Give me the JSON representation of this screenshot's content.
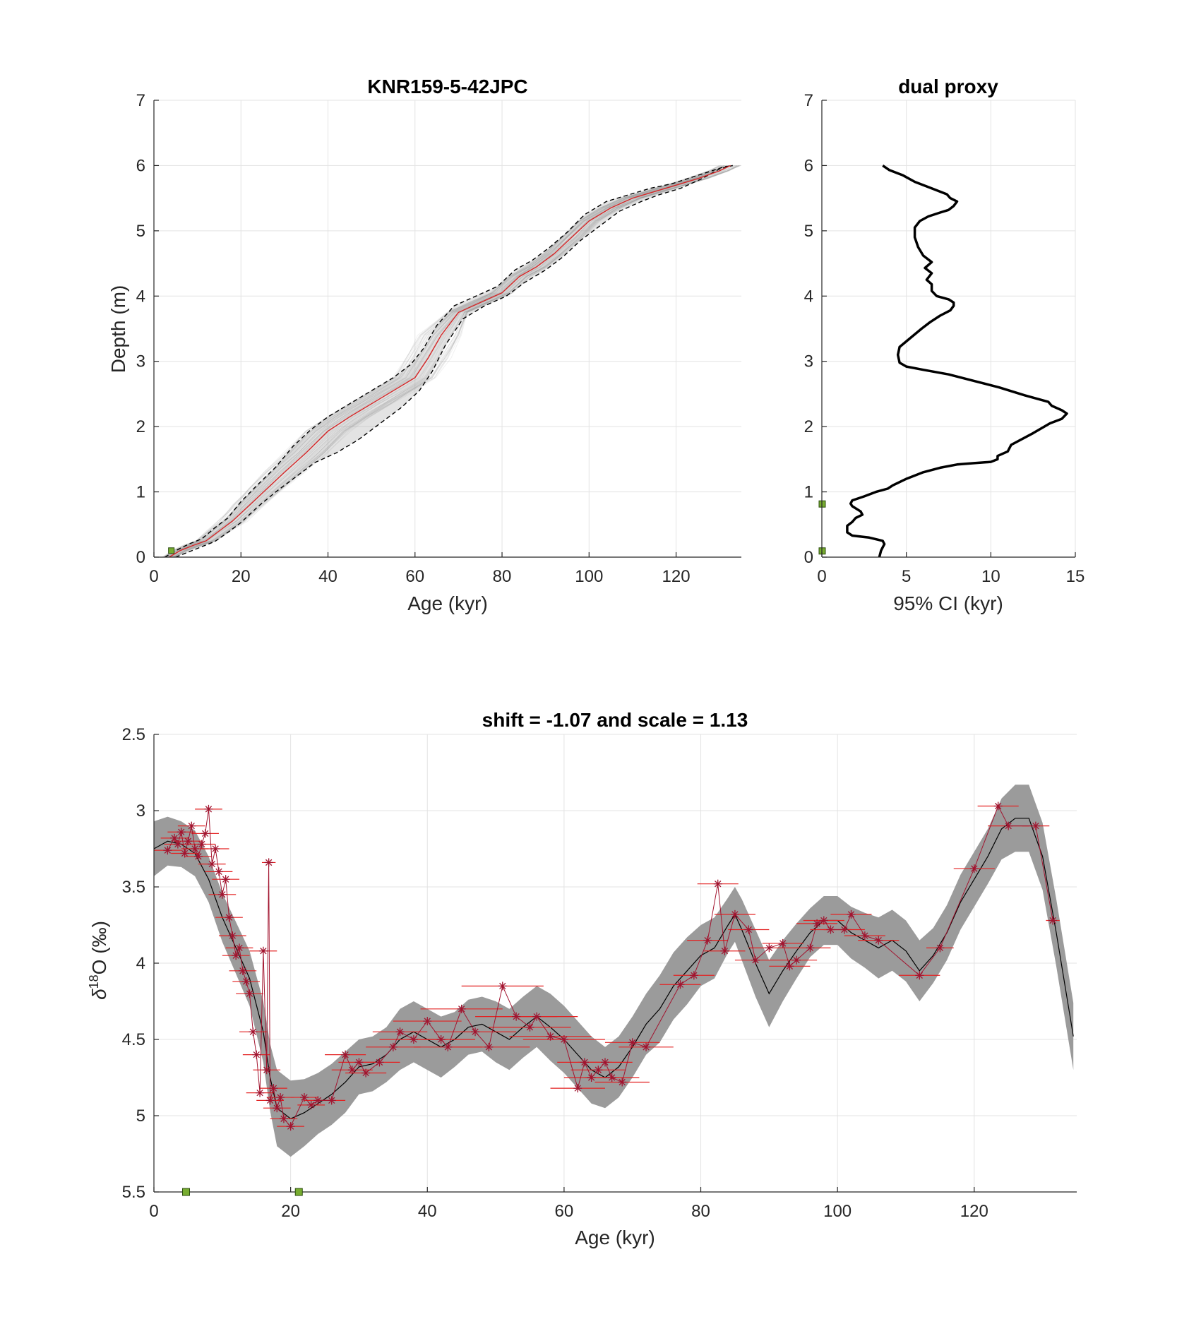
{
  "chart_data": [
    {
      "id": "age_depth",
      "type": "line",
      "title": "KNR159-5-42JPC",
      "xlabel": "Age (kyr)",
      "ylabel": "Depth (m)",
      "xlim": [
        0,
        135
      ],
      "ylim": [
        0,
        7
      ],
      "xticks": [
        "0",
        "20",
        "40",
        "60",
        "80",
        "100",
        "120"
      ],
      "yticks": [
        "0",
        "1",
        "2",
        "3",
        "4",
        "5",
        "6",
        "7"
      ],
      "grid": true,
      "colors": {
        "median": "#d62728",
        "bounds": "#000000",
        "ensemble": "#9a9a9a",
        "tiepoint": "#77ac30"
      },
      "series": [
        {
          "role": "median",
          "x": [
            3.5,
            6,
            9,
            12,
            15,
            18,
            22,
            26,
            30,
            35,
            40,
            45,
            50,
            55,
            60,
            63,
            66,
            70,
            75,
            80,
            84,
            88,
            92,
            96,
            100,
            105,
            110,
            115,
            120,
            125,
            130,
            132.5
          ],
          "y": [
            0,
            0.1,
            0.18,
            0.25,
            0.4,
            0.55,
            0.8,
            1.05,
            1.3,
            1.6,
            1.93,
            2.15,
            2.35,
            2.55,
            2.75,
            3.05,
            3.4,
            3.75,
            3.9,
            4.05,
            4.3,
            4.45,
            4.65,
            4.9,
            5.15,
            5.35,
            5.5,
            5.6,
            5.7,
            5.8,
            5.92,
            6.0
          ]
        },
        {
          "role": "lower_bound",
          "x": [
            5,
            8,
            11,
            14,
            17,
            20,
            24,
            28,
            32,
            37,
            42,
            47,
            52,
            57,
            61,
            64,
            67,
            71,
            76,
            81,
            85,
            90,
            94,
            98,
            102,
            107,
            112,
            116,
            121,
            126,
            130,
            133
          ],
          "y": [
            0,
            0.08,
            0.16,
            0.24,
            0.38,
            0.53,
            0.78,
            1.0,
            1.2,
            1.45,
            1.6,
            1.8,
            2.05,
            2.3,
            2.55,
            2.85,
            3.25,
            3.65,
            3.85,
            4.0,
            4.2,
            4.4,
            4.6,
            4.85,
            5.05,
            5.3,
            5.45,
            5.55,
            5.65,
            5.8,
            5.95,
            6.0
          ]
        },
        {
          "role": "upper_bound",
          "x": [
            2.5,
            5,
            8,
            11,
            14,
            17,
            20,
            24,
            28,
            32,
            36,
            40,
            45,
            50,
            55,
            59,
            62,
            65,
            69,
            74,
            79,
            83,
            87,
            91,
            95,
            99,
            104,
            109,
            114,
            119,
            125,
            131,
            133
          ],
          "y": [
            0,
            0.1,
            0.2,
            0.28,
            0.45,
            0.6,
            0.85,
            1.12,
            1.38,
            1.7,
            1.95,
            2.15,
            2.35,
            2.55,
            2.75,
            2.95,
            3.2,
            3.55,
            3.85,
            4.0,
            4.15,
            4.4,
            4.55,
            4.75,
            4.98,
            5.25,
            5.45,
            5.55,
            5.65,
            5.72,
            5.85,
            5.98,
            6.0
          ]
        }
      ],
      "tie_points": [
        {
          "x": 4,
          "y": 0.1
        }
      ]
    },
    {
      "id": "ci",
      "type": "line",
      "title": "dual proxy",
      "xlabel": "95% CI (kyr)",
      "ylabel": "",
      "xlim": [
        0,
        15
      ],
      "ylim": [
        0,
        7
      ],
      "xticks": [
        "0",
        "5",
        "10",
        "15"
      ],
      "yticks": [
        "0",
        "1",
        "2",
        "3",
        "4",
        "5",
        "6",
        "7"
      ],
      "grid": true,
      "colors": {
        "line": "#000000",
        "tiepoint": "#77ac30"
      },
      "series": [
        {
          "x": [
            3.4,
            3.5,
            3.6,
            3.7,
            3.6,
            2.8,
            1.8,
            1.5,
            1.5,
            1.8,
            2.0,
            2.4,
            2.3,
            1.8,
            1.7,
            1.8,
            2.5,
            3.2,
            3.9,
            4.2,
            5.0,
            6.0,
            7.0,
            8.0,
            9.0,
            10.0,
            10.4,
            10.4,
            11.0,
            11.2,
            12.5,
            13.5,
            14.2,
            14.5,
            14.2,
            13.6,
            13.4,
            12.0,
            10.5,
            9.0,
            7.5,
            6.0,
            5.0,
            4.6,
            4.5,
            4.6,
            5.2,
            5.9,
            6.4,
            7.0,
            7.6,
            7.8,
            7.8,
            7.5,
            6.8,
            6.5,
            6.5,
            6.2,
            6.5,
            6.1,
            6.5,
            6.0,
            5.7,
            5.5,
            5.5,
            5.8,
            6.3,
            7.0,
            7.5,
            7.8,
            8.0,
            7.6,
            7.4,
            6.5,
            5.5,
            4.8,
            4.0,
            3.6
          ],
          "y": [
            0,
            0.1,
            0.15,
            0.2,
            0.25,
            0.3,
            0.33,
            0.38,
            0.48,
            0.54,
            0.6,
            0.65,
            0.7,
            0.78,
            0.82,
            0.87,
            0.93,
            1.0,
            1.05,
            1.1,
            1.2,
            1.3,
            1.37,
            1.42,
            1.44,
            1.46,
            1.5,
            1.55,
            1.62,
            1.72,
            1.9,
            2.05,
            2.12,
            2.2,
            2.25,
            2.32,
            2.38,
            2.48,
            2.6,
            2.7,
            2.8,
            2.87,
            2.92,
            2.98,
            3.1,
            3.22,
            3.35,
            3.5,
            3.6,
            3.7,
            3.78,
            3.85,
            3.9,
            3.95,
            4.0,
            4.08,
            4.18,
            4.25,
            4.35,
            4.43,
            4.52,
            4.62,
            4.75,
            4.9,
            5.05,
            5.15,
            5.22,
            5.28,
            5.32,
            5.38,
            5.45,
            5.5,
            5.56,
            5.65,
            5.75,
            5.85,
            5.93,
            6.0
          ]
        }
      ],
      "tie_points": [
        {
          "x": 0,
          "y": 0.1
        },
        {
          "x": 0,
          "y": 0.82
        }
      ]
    },
    {
      "id": "d18o",
      "type": "line",
      "title": "shift = -1.07 and scale = 1.13",
      "xlabel": "Age (kyr)",
      "ylabel_main": "δ",
      "ylabel_sup": "18",
      "ylabel_rest": "O (‰)",
      "xlim": [
        0,
        135
      ],
      "ylim": [
        2.5,
        5.5
      ],
      "y_reversed": true,
      "xticks": [
        "0",
        "20",
        "40",
        "60",
        "80",
        "100",
        "120"
      ],
      "yticks": [
        "2.5",
        "3",
        "3.5",
        "4",
        "4.5",
        "5",
        "5.5"
      ],
      "grid": true,
      "colors": {
        "band": "#9b9b9b",
        "mean": "#000000",
        "obs": "#a2142f",
        "errbar": "#e32222",
        "tiepoint": "#77ac30"
      },
      "mean_curve": {
        "x": [
          0,
          2,
          4,
          6,
          8,
          10,
          12,
          14,
          16,
          17,
          18,
          20,
          22,
          24,
          26,
          28,
          30,
          32,
          34,
          36,
          38,
          40,
          42,
          44,
          46,
          48,
          50,
          52,
          54,
          56,
          58,
          60,
          62,
          64,
          66,
          68,
          70,
          72,
          74,
          76,
          78,
          80,
          82,
          84,
          85,
          86,
          88,
          90,
          92,
          94,
          96,
          98,
          100,
          102,
          104,
          106,
          108,
          110,
          112,
          114,
          116,
          118,
          120,
          122,
          124,
          126,
          128,
          130,
          132,
          134.5
        ],
        "y": [
          3.25,
          3.2,
          3.22,
          3.28,
          3.45,
          3.7,
          3.9,
          4.1,
          4.45,
          4.75,
          4.95,
          5.02,
          4.98,
          4.92,
          4.86,
          4.78,
          4.68,
          4.66,
          4.6,
          4.5,
          4.45,
          4.5,
          4.55,
          4.5,
          4.42,
          4.4,
          4.45,
          4.5,
          4.42,
          4.35,
          4.42,
          4.5,
          4.6,
          4.7,
          4.75,
          4.68,
          4.55,
          4.4,
          4.3,
          4.15,
          4.05,
          3.95,
          3.9,
          3.75,
          3.68,
          3.78,
          4.0,
          4.2,
          4.05,
          3.92,
          3.8,
          3.72,
          3.72,
          3.8,
          3.85,
          3.9,
          3.85,
          3.92,
          4.05,
          3.95,
          3.8,
          3.6,
          3.45,
          3.3,
          3.12,
          3.05,
          3.05,
          3.3,
          3.8,
          4.48
        ],
        "halfwidth": [
          0.18,
          0.16,
          0.15,
          0.15,
          0.15,
          0.16,
          0.17,
          0.18,
          0.2,
          0.22,
          0.25,
          0.25,
          0.22,
          0.2,
          0.2,
          0.2,
          0.18,
          0.18,
          0.18,
          0.2,
          0.2,
          0.2,
          0.2,
          0.18,
          0.18,
          0.18,
          0.2,
          0.2,
          0.2,
          0.2,
          0.22,
          0.22,
          0.22,
          0.22,
          0.2,
          0.2,
          0.2,
          0.2,
          0.22,
          0.22,
          0.22,
          0.2,
          0.2,
          0.18,
          0.18,
          0.2,
          0.22,
          0.22,
          0.2,
          0.18,
          0.16,
          0.16,
          0.16,
          0.17,
          0.18,
          0.2,
          0.2,
          0.2,
          0.2,
          0.18,
          0.18,
          0.18,
          0.18,
          0.18,
          0.2,
          0.22,
          0.22,
          0.22,
          0.22,
          0.22
        ]
      },
      "observations": [
        {
          "x": 2,
          "y": 3.26,
          "e": 2
        },
        {
          "x": 3,
          "y": 3.18,
          "e": 2
        },
        {
          "x": 3.5,
          "y": 3.22,
          "e": 2
        },
        {
          "x": 4,
          "y": 3.14,
          "e": 2
        },
        {
          "x": 4.5,
          "y": 3.28,
          "e": 2
        },
        {
          "x": 5,
          "y": 3.2,
          "e": 2
        },
        {
          "x": 5.5,
          "y": 3.1,
          "e": 2
        },
        {
          "x": 6,
          "y": 3.25,
          "e": 2
        },
        {
          "x": 6.5,
          "y": 3.3,
          "e": 2
        },
        {
          "x": 7,
          "y": 3.22,
          "e": 2
        },
        {
          "x": 7.5,
          "y": 3.15,
          "e": 2
        },
        {
          "x": 8,
          "y": 2.99,
          "e": 2
        },
        {
          "x": 8.5,
          "y": 3.35,
          "e": 2
        },
        {
          "x": 9,
          "y": 3.25,
          "e": 2
        },
        {
          "x": 9.5,
          "y": 3.4,
          "e": 2
        },
        {
          "x": 10,
          "y": 3.55,
          "e": 2
        },
        {
          "x": 10.5,
          "y": 3.45,
          "e": 2
        },
        {
          "x": 11,
          "y": 3.7,
          "e": 2
        },
        {
          "x": 11.5,
          "y": 3.82,
          "e": 2
        },
        {
          "x": 12,
          "y": 3.95,
          "e": 2
        },
        {
          "x": 12.5,
          "y": 3.9,
          "e": 2
        },
        {
          "x": 13,
          "y": 4.05,
          "e": 2
        },
        {
          "x": 13.5,
          "y": 4.12,
          "e": 2
        },
        {
          "x": 14,
          "y": 4.2,
          "e": 2
        },
        {
          "x": 14.5,
          "y": 4.45,
          "e": 2
        },
        {
          "x": 15,
          "y": 4.6,
          "e": 2
        },
        {
          "x": 15.5,
          "y": 4.85,
          "e": 2
        },
        {
          "x": 16,
          "y": 3.92,
          "e": 2
        },
        {
          "x": 16.5,
          "y": 4.7,
          "e": 2
        },
        {
          "x": 16.8,
          "y": 3.34,
          "e": 1
        },
        {
          "x": 17,
          "y": 4.9,
          "e": 2
        },
        {
          "x": 17.5,
          "y": 4.82,
          "e": 2
        },
        {
          "x": 18,
          "y": 4.95,
          "e": 2
        },
        {
          "x": 18.5,
          "y": 4.88,
          "e": 2
        },
        {
          "x": 19,
          "y": 5.02,
          "e": 2
        },
        {
          "x": 20,
          "y": 5.07,
          "e": 2
        },
        {
          "x": 22,
          "y": 4.88,
          "e": 2
        },
        {
          "x": 23,
          "y": 4.93,
          "e": 2
        },
        {
          "x": 24,
          "y": 4.9,
          "e": 2
        },
        {
          "x": 26,
          "y": 4.9,
          "e": 2
        },
        {
          "x": 28,
          "y": 4.6,
          "e": 3
        },
        {
          "x": 29,
          "y": 4.7,
          "e": 3
        },
        {
          "x": 30,
          "y": 4.65,
          "e": 3
        },
        {
          "x": 31,
          "y": 4.72,
          "e": 3
        },
        {
          "x": 33,
          "y": 4.65,
          "e": 3
        },
        {
          "x": 35,
          "y": 4.55,
          "e": 4
        },
        {
          "x": 36,
          "y": 4.45,
          "e": 4
        },
        {
          "x": 38,
          "y": 4.5,
          "e": 5
        },
        {
          "x": 40,
          "y": 4.38,
          "e": 5
        },
        {
          "x": 42,
          "y": 4.5,
          "e": 5
        },
        {
          "x": 43,
          "y": 4.55,
          "e": 5
        },
        {
          "x": 45,
          "y": 4.3,
          "e": 6
        },
        {
          "x": 47,
          "y": 4.45,
          "e": 6
        },
        {
          "x": 49,
          "y": 4.55,
          "e": 6
        },
        {
          "x": 51,
          "y": 4.15,
          "e": 6
        },
        {
          "x": 53,
          "y": 4.35,
          "e": 6
        },
        {
          "x": 55,
          "y": 4.42,
          "e": 6
        },
        {
          "x": 56,
          "y": 4.35,
          "e": 6
        },
        {
          "x": 58,
          "y": 4.48,
          "e": 6
        },
        {
          "x": 60,
          "y": 4.5,
          "e": 6
        },
        {
          "x": 62,
          "y": 4.82,
          "e": 4
        },
        {
          "x": 63,
          "y": 4.65,
          "e": 4
        },
        {
          "x": 64,
          "y": 4.75,
          "e": 4
        },
        {
          "x": 65,
          "y": 4.7,
          "e": 4
        },
        {
          "x": 66,
          "y": 4.65,
          "e": 4
        },
        {
          "x": 67,
          "y": 4.75,
          "e": 4
        },
        {
          "x": 68.5,
          "y": 4.78,
          "e": 4
        },
        {
          "x": 70,
          "y": 4.52,
          "e": 4
        },
        {
          "x": 72,
          "y": 4.55,
          "e": 4
        },
        {
          "x": 77,
          "y": 4.14,
          "e": 3
        },
        {
          "x": 79,
          "y": 4.08,
          "e": 3
        },
        {
          "x": 81,
          "y": 3.85,
          "e": 3
        },
        {
          "x": 82.5,
          "y": 3.48,
          "e": 3
        },
        {
          "x": 83.5,
          "y": 3.92,
          "e": 3
        },
        {
          "x": 85,
          "y": 3.68,
          "e": 3
        },
        {
          "x": 87,
          "y": 3.78,
          "e": 3
        },
        {
          "x": 88,
          "y": 3.98,
          "e": 3
        },
        {
          "x": 90,
          "y": 3.9,
          "e": 3
        },
        {
          "x": 92,
          "y": 3.87,
          "e": 3
        },
        {
          "x": 93,
          "y": 4.02,
          "e": 3
        },
        {
          "x": 94,
          "y": 3.98,
          "e": 3
        },
        {
          "x": 96,
          "y": 3.9,
          "e": 3
        },
        {
          "x": 97,
          "y": 3.74,
          "e": 3
        },
        {
          "x": 98,
          "y": 3.72,
          "e": 3
        },
        {
          "x": 99,
          "y": 3.78,
          "e": 3
        },
        {
          "x": 101,
          "y": 3.78,
          "e": 3
        },
        {
          "x": 102,
          "y": 3.68,
          "e": 3
        },
        {
          "x": 104,
          "y": 3.82,
          "e": 3
        },
        {
          "x": 106,
          "y": 3.85,
          "e": 3
        },
        {
          "x": 112,
          "y": 4.08,
          "e": 3
        },
        {
          "x": 115,
          "y": 3.9,
          "e": 2
        },
        {
          "x": 120,
          "y": 3.38,
          "e": 3
        },
        {
          "x": 123.5,
          "y": 2.97,
          "e": 3
        },
        {
          "x": 125,
          "y": 3.1,
          "e": 3
        },
        {
          "x": 129,
          "y": 3.1,
          "e": 2
        },
        {
          "x": 131.5,
          "y": 3.72,
          "e": 1
        }
      ],
      "tie_points": [
        {
          "x": 4.7,
          "y": 5.5
        },
        {
          "x": 21.2,
          "y": 5.5
        }
      ]
    }
  ]
}
